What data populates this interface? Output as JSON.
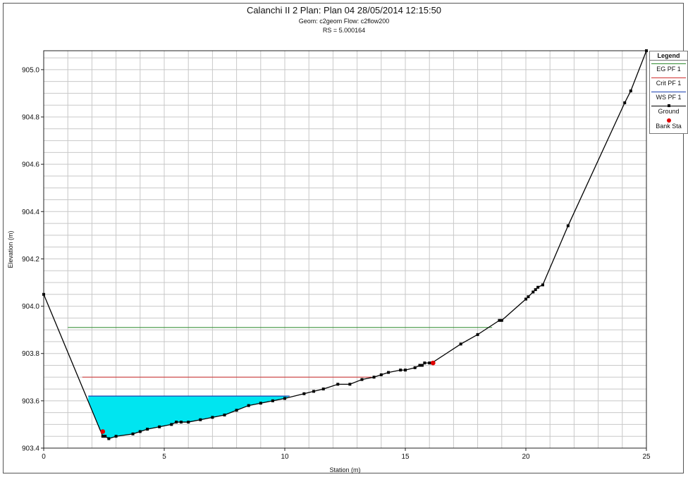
{
  "title": "Calanchi II 2      Plan: Plan 04    28/05/2014  12:15:50",
  "subtitle": "Geom: c2geom    Flow: c2flow200",
  "rs_label": "RS = 5.000164",
  "legend": {
    "title": "Legend",
    "items": [
      {
        "label": "EG PF 1",
        "color": "#2e8b2e",
        "style": "line"
      },
      {
        "label": "Crit PF 1",
        "color": "#d03030",
        "style": "line"
      },
      {
        "label": "WS PF 1",
        "color": "#1a3fb0",
        "style": "line"
      },
      {
        "label": "Ground",
        "color": "#000000",
        "style": "line-marker"
      },
      {
        "label": "Bank Sta",
        "color": "#e00000",
        "style": "dot"
      }
    ]
  },
  "chart_data": {
    "type": "line",
    "xlabel": "Station (m)",
    "ylabel": "Elevation (m)",
    "xlim": [
      0,
      25
    ],
    "ylim": [
      903.4,
      905.08
    ],
    "xticks": [
      0,
      5,
      10,
      15,
      20,
      25
    ],
    "yticks": [
      903.4,
      903.6,
      903.8,
      904.0,
      904.2,
      904.4,
      904.6,
      904.8,
      905.0
    ],
    "grid": true,
    "legend_position": "right",
    "water_fill_color": "#00e5f0",
    "ground": {
      "name": "Ground",
      "x": [
        0,
        2.45,
        2.55,
        2.7,
        3.0,
        3.7,
        4.0,
        4.3,
        4.8,
        5.3,
        5.5,
        5.7,
        6.0,
        6.5,
        7.0,
        7.5,
        8.0,
        8.5,
        9.0,
        9.5,
        10.0,
        10.8,
        11.2,
        11.6,
        12.2,
        12.7,
        13.2,
        13.7,
        14.0,
        14.3,
        14.8,
        15.0,
        15.4,
        15.6,
        15.7,
        15.8,
        16.0,
        16.1,
        17.3,
        18.0,
        18.9,
        19.0,
        20.0,
        20.1,
        20.3,
        20.4,
        20.5,
        20.7,
        21.75,
        24.1,
        24.35,
        25.0
      ],
      "y": [
        904.05,
        903.45,
        903.45,
        903.44,
        903.45,
        903.46,
        903.47,
        903.48,
        903.49,
        903.5,
        903.51,
        903.51,
        903.51,
        903.52,
        903.53,
        903.54,
        903.56,
        903.58,
        903.59,
        903.6,
        903.61,
        903.63,
        903.64,
        903.65,
        903.67,
        903.67,
        903.69,
        903.7,
        903.71,
        903.72,
        903.73,
        903.73,
        903.74,
        903.75,
        903.75,
        903.76,
        903.76,
        903.76,
        903.84,
        903.88,
        903.94,
        903.94,
        904.03,
        904.04,
        904.06,
        904.07,
        904.08,
        904.09,
        904.34,
        904.86,
        904.91,
        905.08
      ]
    },
    "bank_stations": [
      {
        "x": 2.45,
        "y": 903.47
      },
      {
        "x": 16.15,
        "y": 903.76
      }
    ],
    "eg": {
      "name": "EG PF 1",
      "elevation": 903.91,
      "x_start": 1.0,
      "x_end": 18.6
    },
    "crit": {
      "name": "Crit PF 1",
      "elevation": 903.7,
      "x_start": 1.6,
      "x_end": 13.6
    },
    "ws": {
      "name": "WS PF 1",
      "elevation": 903.62,
      "x_start": 1.85,
      "x_end": 10.2
    }
  }
}
